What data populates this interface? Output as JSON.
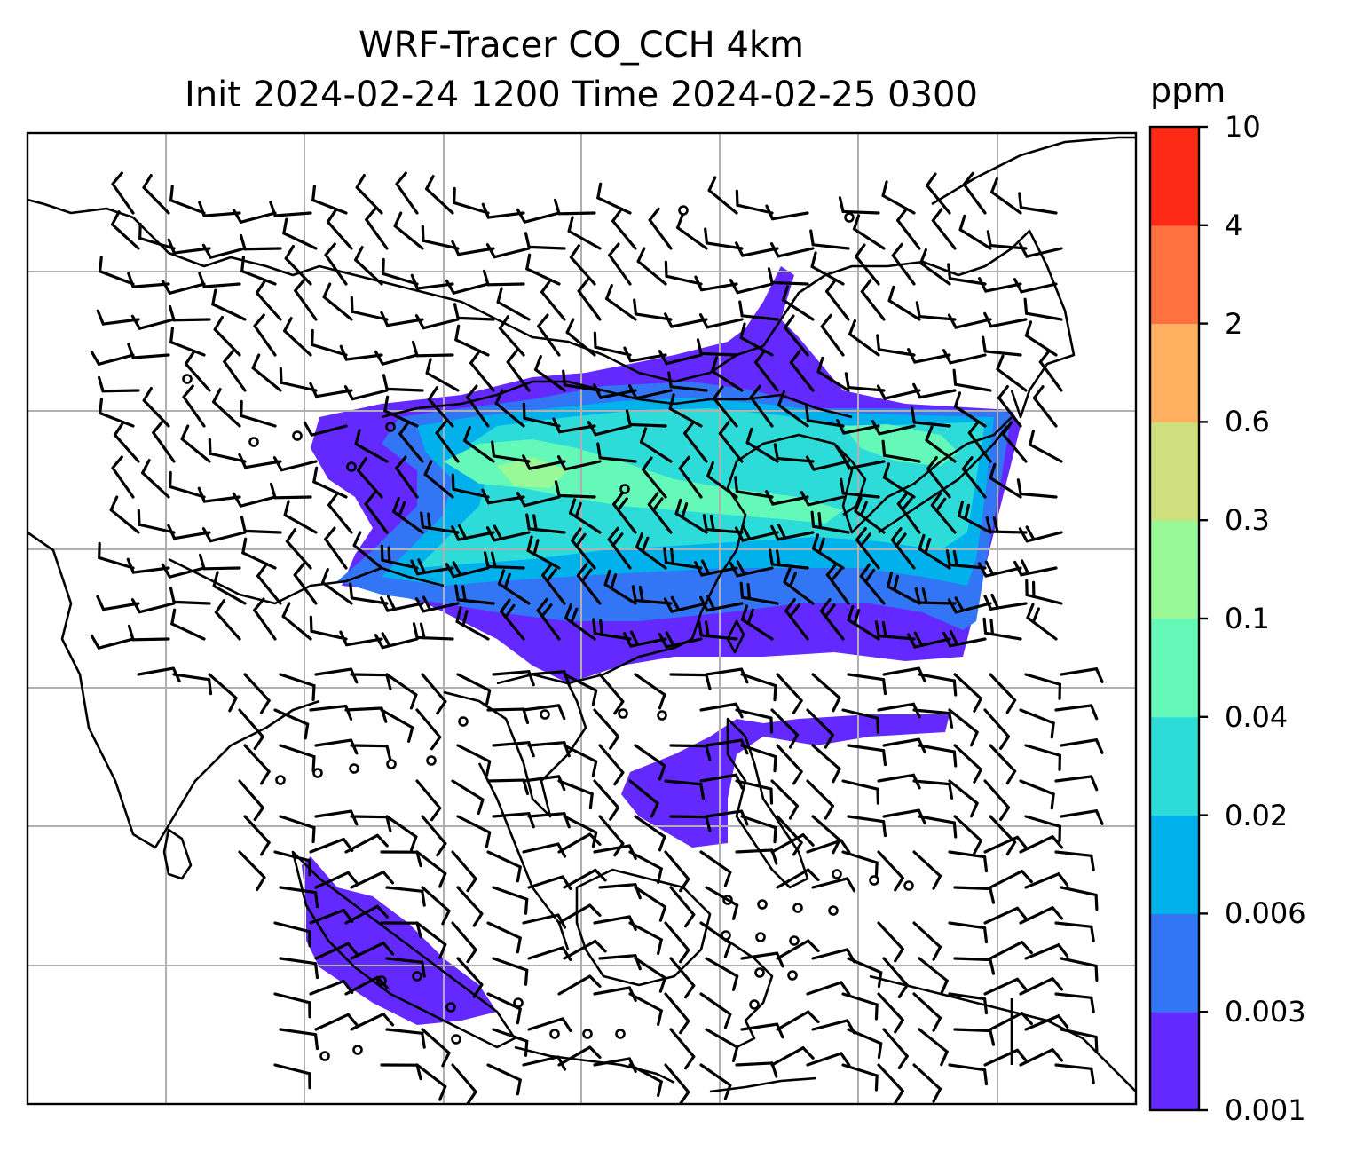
{
  "title": {
    "line1": "WRF-Tracer CO_CCH 4km",
    "line2": "Init 2024-02-24 1200 Time 2024-02-25 0300"
  },
  "colorbar": {
    "unit": "ppm",
    "levels": [
      "0.001",
      "0.003",
      "0.006",
      "0.02",
      "0.04",
      "0.1",
      "0.3",
      "0.6",
      "2",
      "4",
      "10"
    ],
    "colors": [
      "#6429ff",
      "#3276f5",
      "#01b1ec",
      "#2ddcd8",
      "#64f9b9",
      "#98f996",
      "#d0df7e",
      "#ffb161",
      "#ff713f",
      "#ff2a15"
    ]
  },
  "map": {
    "gridlines": true,
    "coastline_color": "#000000",
    "grid_color": "#b0b0b0",
    "wind_barb_color": "#000000",
    "variable": "CO_CCH tracer concentration with wind barbs"
  }
}
